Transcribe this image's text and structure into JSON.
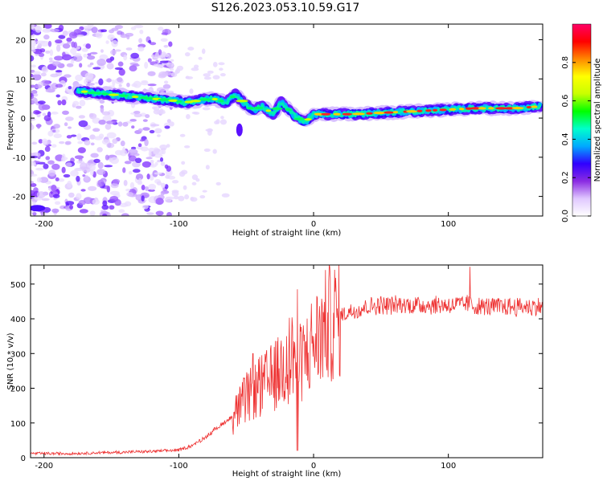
{
  "title": "S126.2023.053.10.59.G17",
  "chart_data": [
    {
      "type": "heatmap",
      "xlabel": "Height of straight line (km)",
      "ylabel": "Frequency (Hz)",
      "xlim": [
        -210,
        170
      ],
      "ylim": [
        -25,
        24
      ],
      "xticks": [
        -200,
        -100,
        0,
        100
      ],
      "yticks": [
        -20,
        -10,
        0,
        10,
        20
      ],
      "colorbar": {
        "label": "Normalized spectral amplitude",
        "range": [
          0,
          1
        ],
        "ticks": [
          0.0,
          0.2,
          0.4,
          0.6,
          0.8
        ],
        "colors": [
          "#ffffff",
          "#e0c8ff",
          "#8a2be2",
          "#3000ff",
          "#00aaff",
          "#00ffcc",
          "#00ff00",
          "#c8ff00",
          "#ffff00",
          "#ff8800",
          "#ff0000",
          "#ff0066"
        ]
      },
      "ridge": {
        "x": [
          -175,
          -165,
          -150,
          -135,
          -120,
          -105,
          -95,
          -85,
          -75,
          -65,
          -58,
          -52,
          -45,
          -38,
          -30,
          -24,
          -18,
          -12,
          -6,
          0,
          10,
          30,
          60,
          90,
          120,
          150,
          168
        ],
        "y": [
          7,
          6.5,
          6,
          5.5,
          5,
          4.5,
          4,
          4.5,
          5,
          4,
          6,
          4,
          2,
          3,
          1,
          4,
          2,
          0,
          -1,
          1,
          1,
          1,
          1.5,
          2,
          2.5,
          2.5,
          3
        ]
      }
    },
    {
      "type": "line",
      "xlabel": "Height of straight line (km)",
      "ylabel": "SNR (10 * v/v)",
      "xlim": [
        -210,
        170
      ],
      "ylim": [
        0,
        555
      ],
      "xticks": [
        -200,
        -100,
        0,
        100
      ],
      "yticks": [
        0,
        100,
        200,
        300,
        400,
        500
      ],
      "series": [
        {
          "color": "#ee3333",
          "x": [
            -210,
            -180,
            -150,
            -120,
            -100,
            -90,
            -80,
            -70,
            -60,
            -50,
            -40,
            -30,
            -25,
            -20,
            -15,
            -10,
            -5,
            0,
            10,
            20,
            30,
            40,
            50,
            60,
            80,
            100,
            110,
            116,
            120,
            140,
            170
          ],
          "y": [
            12,
            12,
            15,
            18,
            22,
            35,
            60,
            90,
            120,
            170,
            200,
            230,
            250,
            280,
            300,
            270,
            300,
            330,
            380,
            410,
            425,
            435,
            440,
            440,
            440,
            440,
            440,
            445,
            435,
            435,
            435
          ]
        }
      ],
      "spikes": [
        {
          "x": -12,
          "y": 485
        },
        {
          "x": -20,
          "y": 350
        },
        {
          "x": -40,
          "y": 290
        },
        {
          "x": -45,
          "y": 300
        },
        {
          "x": 116,
          "y": 550
        }
      ]
    }
  ]
}
